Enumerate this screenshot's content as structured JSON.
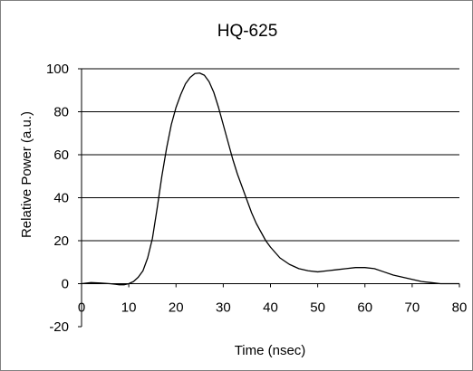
{
  "chart_data": {
    "type": "line",
    "title": "HQ-625",
    "xlabel": "Time (nsec)",
    "ylabel": "Relative Power (a.u.)",
    "xlim": [
      0,
      80
    ],
    "ylim": [
      -20,
      100
    ],
    "x_ticks": [
      0,
      10,
      20,
      30,
      40,
      50,
      60,
      70,
      80
    ],
    "y_ticks": [
      -20,
      0,
      20,
      40,
      60,
      80,
      100
    ],
    "grid": "horizontal",
    "legend": "none",
    "series": [
      {
        "color": "#000000",
        "x": [
          0,
          2,
          4,
          6,
          8,
          9,
          10,
          11,
          12,
          13,
          14,
          15,
          16,
          17,
          18,
          19,
          20,
          21,
          22,
          23,
          24,
          25,
          26,
          27,
          28,
          29,
          30,
          31,
          32,
          33,
          34,
          35,
          36,
          37,
          38,
          39,
          40,
          42,
          44,
          46,
          48,
          50,
          52,
          54,
          56,
          58,
          60,
          62,
          64,
          66,
          68,
          70,
          72,
          74,
          76,
          78,
          80
        ],
        "y": [
          0,
          0.5,
          0.3,
          0,
          -0.5,
          -0.5,
          0,
          1,
          3,
          6,
          12,
          21,
          35,
          50,
          63,
          74,
          82,
          88,
          93,
          96,
          97.8,
          98,
          97,
          94,
          89,
          82,
          74,
          66,
          58,
          51,
          45,
          39,
          33,
          28,
          24,
          20,
          17,
          12,
          9,
          7,
          6,
          5.5,
          6,
          6.5,
          7,
          7.5,
          7.5,
          7,
          5.5,
          4,
          3,
          2,
          1,
          0.5,
          0,
          0,
          0
        ]
      }
    ]
  }
}
